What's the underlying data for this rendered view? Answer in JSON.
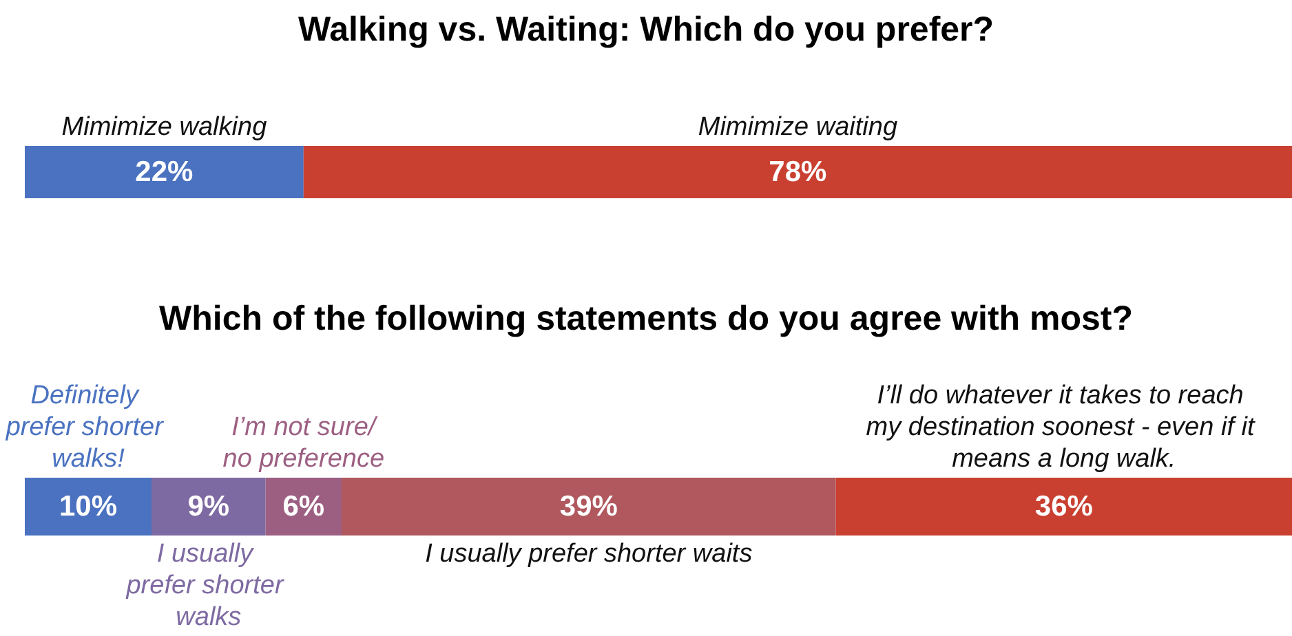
{
  "chart_data": [
    {
      "type": "bar",
      "orientation": "horizontal",
      "stacked": true,
      "title": "Walking vs. Waiting: Which do you prefer?",
      "categories": [
        null
      ],
      "series": [
        {
          "name": "Mimimize walking",
          "color": "#4a72c0",
          "values": [
            22
          ],
          "value_labels": [
            "22%"
          ]
        },
        {
          "name": "Mimimize waiting",
          "color": "#c94030",
          "values": [
            78
          ],
          "value_labels": [
            "78%"
          ]
        }
      ]
    },
    {
      "type": "bar",
      "orientation": "horizontal",
      "stacked": true,
      "title": "Which of the following statements do you agree with most?",
      "categories": [
        null
      ],
      "series": [
        {
          "name": "Definitely prefer shorter walks!",
          "color": "#4a72c0",
          "values": [
            10
          ],
          "value_labels": [
            "10%"
          ]
        },
        {
          "name": "I usually prefer shorter walks",
          "color": "#7e6aa2",
          "values": [
            9
          ],
          "value_labels": [
            "9%"
          ]
        },
        {
          "name": "I’m not sure/no preference",
          "color": "#9c5f82",
          "values": [
            6
          ],
          "value_labels": [
            "6%"
          ]
        },
        {
          "name": "I usually prefer shorter waits",
          "color": "#b0585e",
          "values": [
            39
          ],
          "value_labels": [
            "39%"
          ]
        },
        {
          "name": "I’ll do whatever it takes to reach my destination soonest - even if it means a long walk.",
          "color": "#c94030",
          "values": [
            36
          ],
          "value_labels": [
            "36%"
          ]
        }
      ]
    }
  ]
}
